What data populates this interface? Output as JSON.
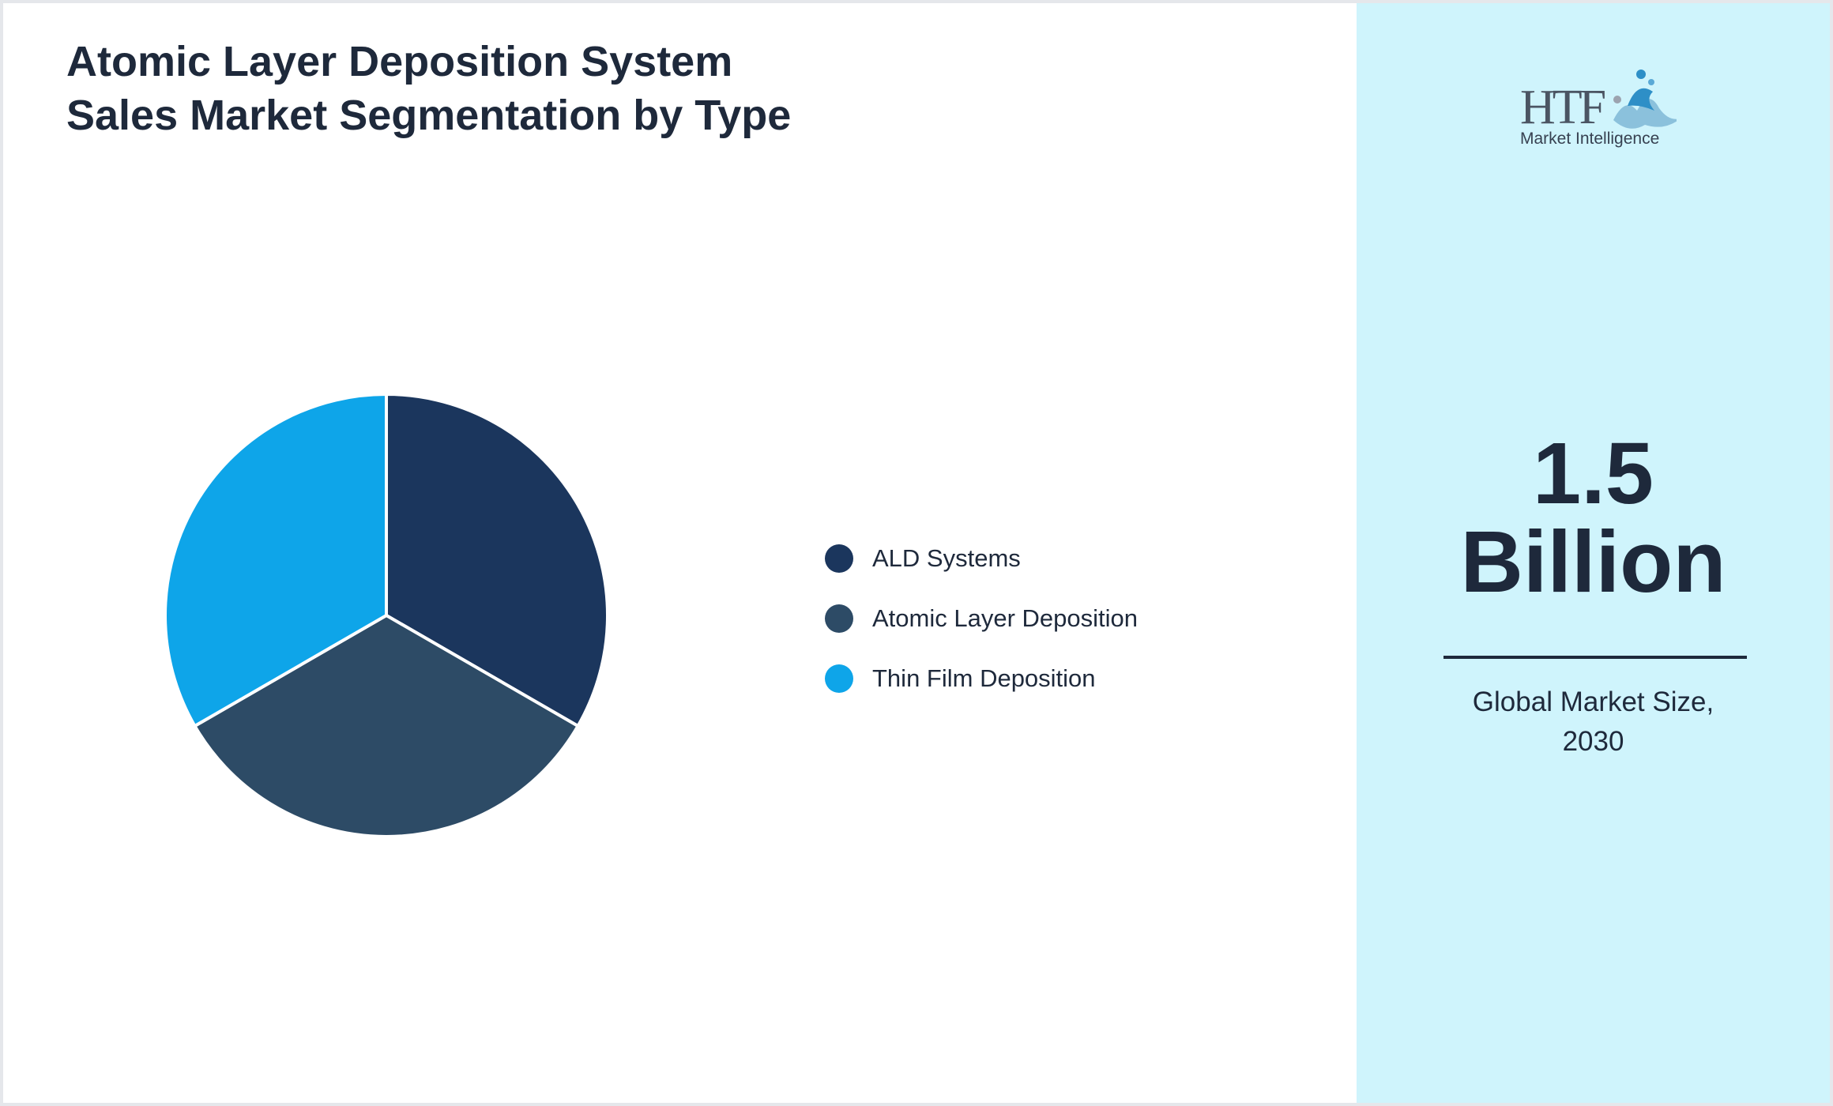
{
  "title": "Atomic Layer Deposition System Sales Market Segmentation by Type",
  "chart_data": {
    "type": "pie",
    "title": "Atomic Layer Deposition System Sales Market Segmentation by Type",
    "categories": [
      "ALD Systems",
      "Atomic Layer Deposition",
      "Thin Film Deposition"
    ],
    "values": [
      33.3,
      33.3,
      33.3
    ],
    "colors": [
      "#1b365d",
      "#2d4b66",
      "#0ea5e9"
    ],
    "legend_position": "right"
  },
  "summary": {
    "value_line1": "1.5",
    "value_line2": "Billion",
    "caption_line1": "Global Market Size,",
    "caption_line2": "2030"
  },
  "logo": {
    "icon": "htf-logo",
    "brand": "HTF",
    "tagline": "Market Intelligence"
  },
  "colors": {
    "side_panel": "#cff4fc",
    "text": "#1e293b",
    "slice_border": "#ffffff"
  }
}
